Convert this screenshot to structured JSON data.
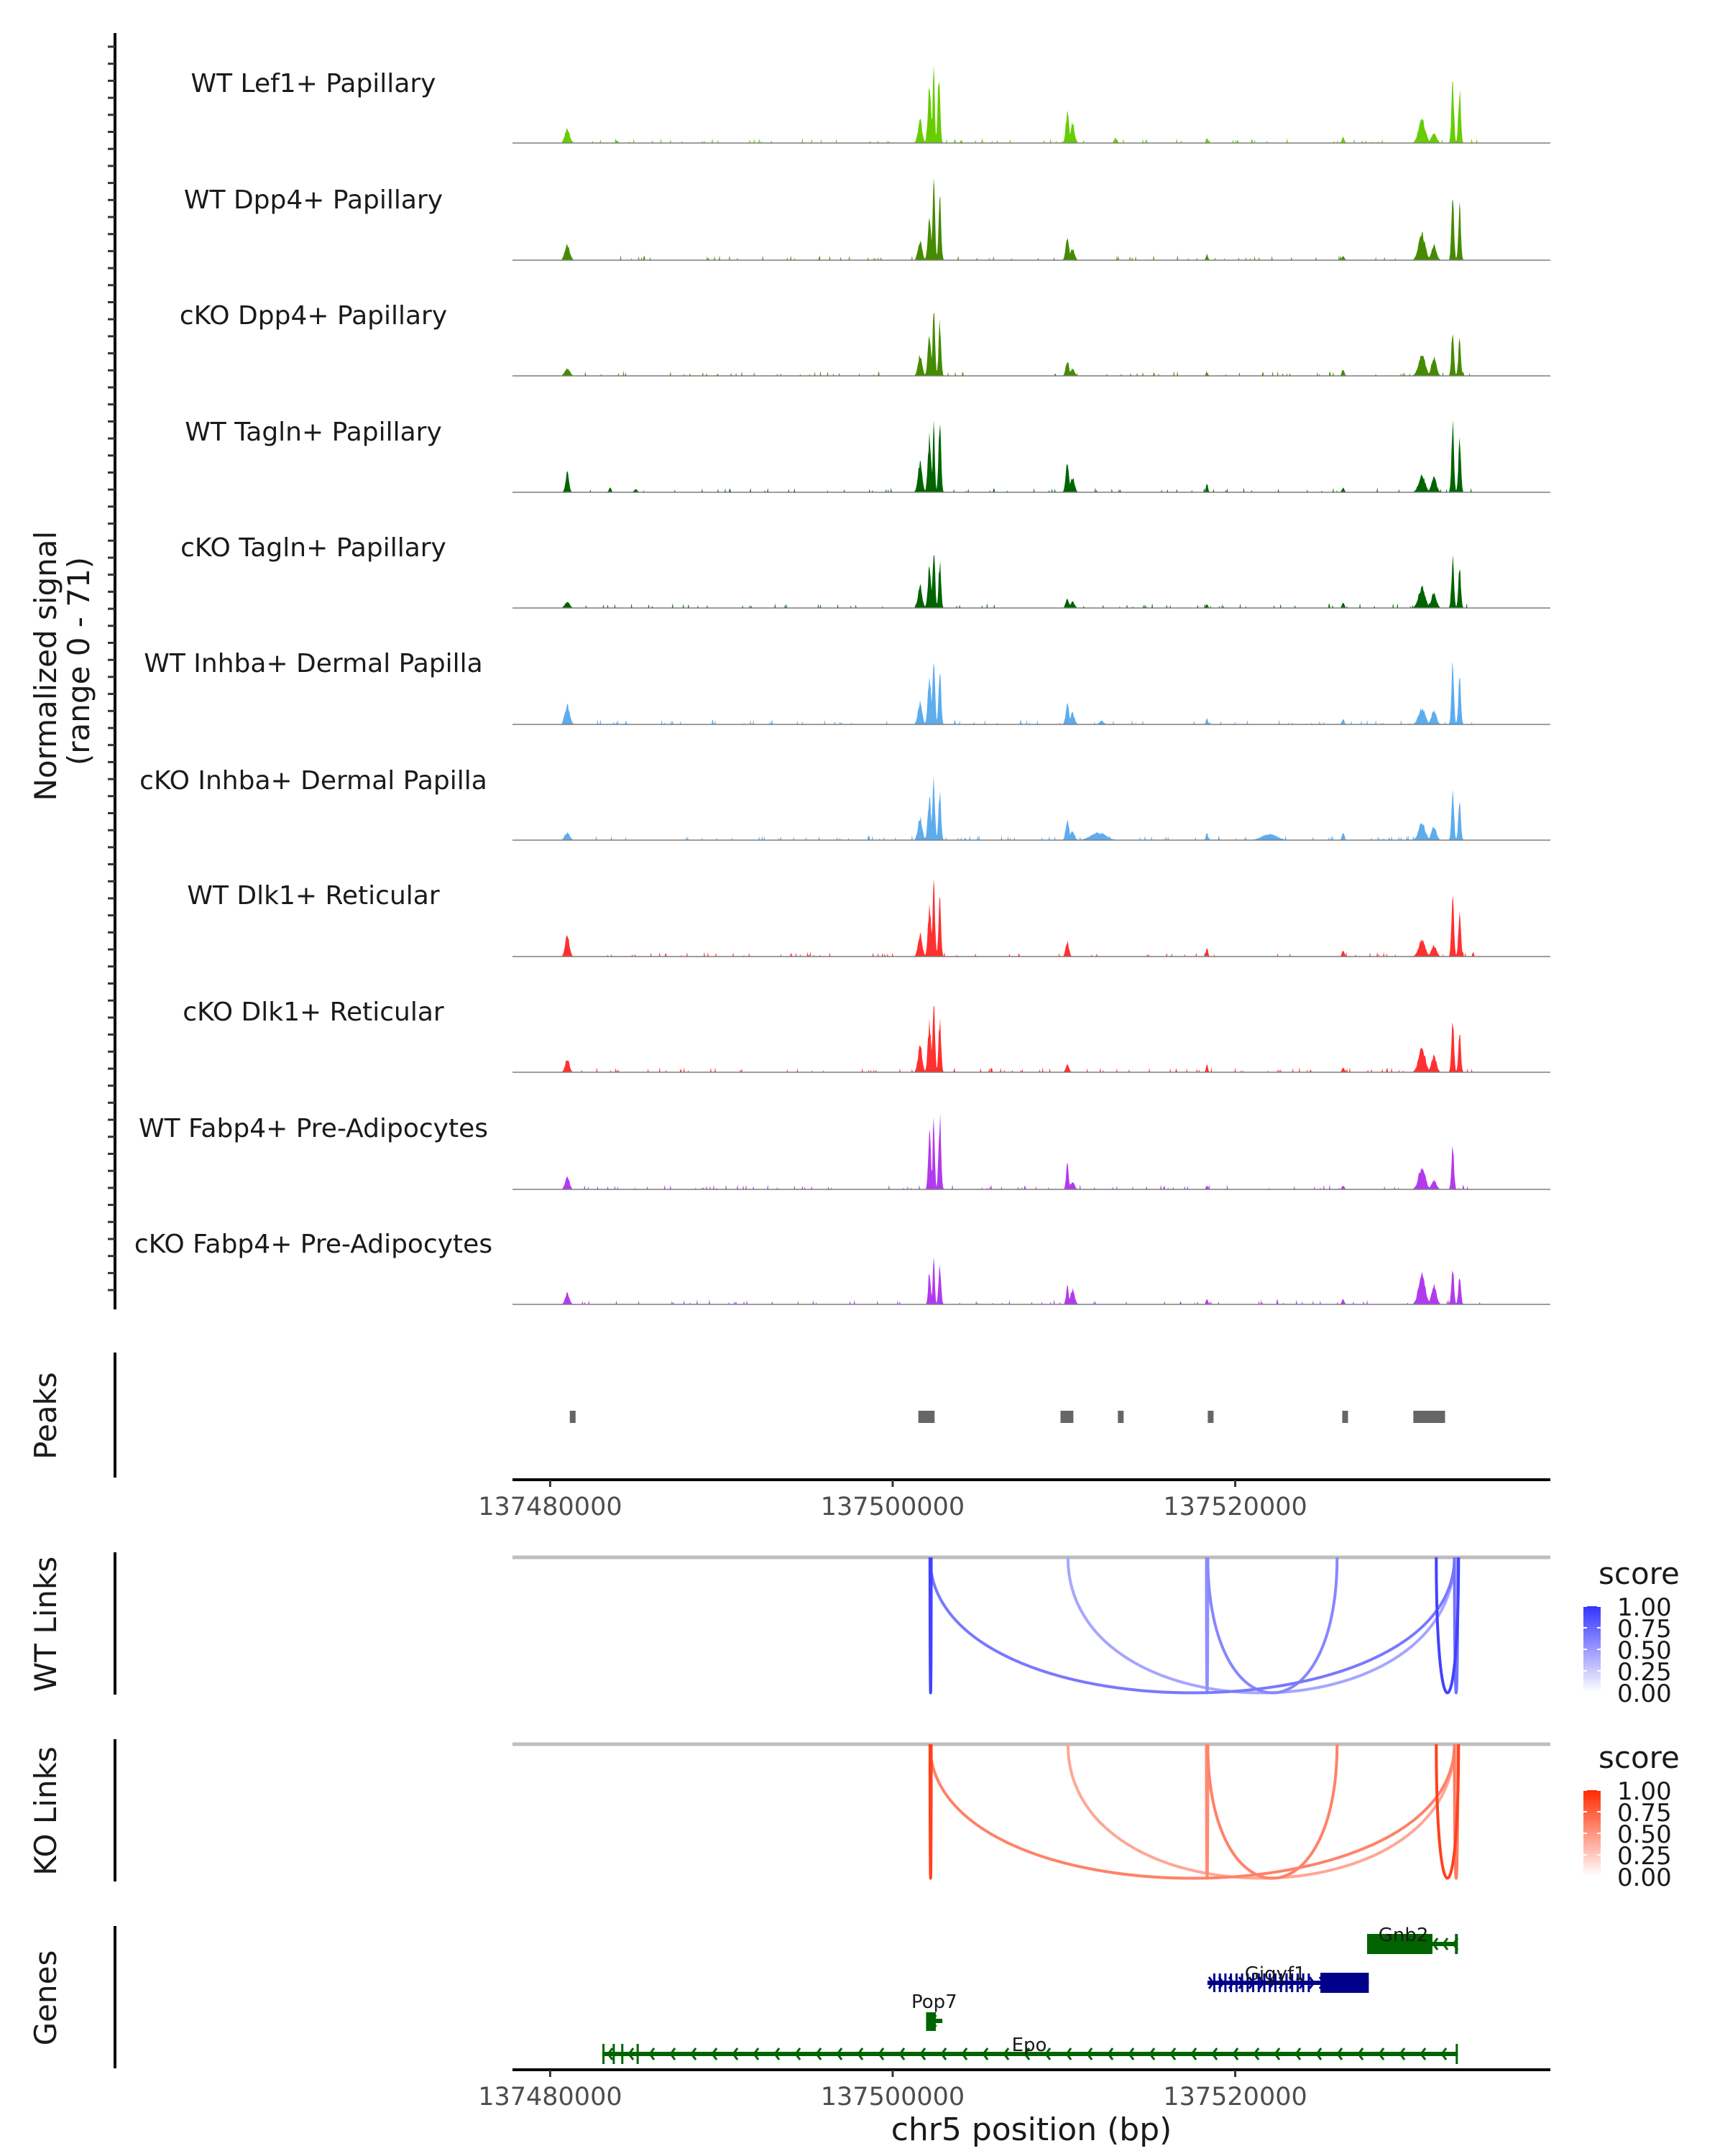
{
  "chart_data": {
    "type": "area",
    "title": "",
    "region": {
      "chrom": "chr5",
      "start": 137477800,
      "end": 137538400
    },
    "xlabel": "chr5 position (bp)",
    "x_ticks": [
      137480000,
      137500000,
      137520000
    ],
    "x_tick_labels": [
      "137480000",
      "137500000",
      "137520000"
    ],
    "coverage_ylabel": "Normalized signal\n(range 0 - 71)",
    "coverage_ylabel_line1": "Normalized signal",
    "coverage_ylabel_line2": "(range 0 - 71)",
    "ylim": [
      0,
      71
    ],
    "grid": false,
    "tracks": [
      {
        "name": "WT Lef1+ Papillary",
        "color": "#66CD00",
        "peaks": [
          [
            137481000,
            0.18,
            300
          ],
          [
            137483900,
            0.03,
            150
          ],
          [
            137501600,
            0.3,
            250
          ],
          [
            137502150,
            0.72,
            200
          ],
          [
            137502400,
            1.0,
            120
          ],
          [
            137502700,
            0.88,
            150
          ],
          [
            137504000,
            0.04,
            100
          ],
          [
            137510200,
            0.4,
            200
          ],
          [
            137510500,
            0.26,
            250
          ],
          [
            137513000,
            0.07,
            150
          ],
          [
            137518350,
            0.07,
            120
          ],
          [
            137526300,
            0.08,
            150
          ],
          [
            137530900,
            0.32,
            400
          ],
          [
            137531600,
            0.14,
            300
          ],
          [
            137532700,
            0.8,
            150
          ],
          [
            137533100,
            0.72,
            150
          ]
        ]
      },
      {
        "name": "WT Dpp4+ Papillary",
        "color": "#458B00",
        "peaks": [
          [
            137481000,
            0.2,
            300
          ],
          [
            137501600,
            0.25,
            250
          ],
          [
            137502150,
            0.6,
            200
          ],
          [
            137502400,
            1.0,
            150
          ],
          [
            137502750,
            0.82,
            150
          ],
          [
            137510200,
            0.3,
            200
          ],
          [
            137510500,
            0.15,
            250
          ],
          [
            137518350,
            0.08,
            120
          ],
          [
            137526300,
            0.06,
            150
          ],
          [
            137530900,
            0.35,
            400
          ],
          [
            137531600,
            0.2,
            300
          ],
          [
            137532700,
            0.9,
            150
          ],
          [
            137533100,
            0.7,
            150
          ]
        ]
      },
      {
        "name": "cKO Dpp4+ Papillary",
        "color": "#458B00",
        "peaks": [
          [
            137481000,
            0.1,
            300
          ],
          [
            137501600,
            0.28,
            250
          ],
          [
            137502150,
            0.55,
            200
          ],
          [
            137502400,
            0.85,
            150
          ],
          [
            137502750,
            0.7,
            150
          ],
          [
            137510200,
            0.2,
            200
          ],
          [
            137510500,
            0.1,
            250
          ],
          [
            137518350,
            0.05,
            120
          ],
          [
            137526300,
            0.08,
            150
          ],
          [
            137530900,
            0.3,
            400
          ],
          [
            137531600,
            0.25,
            300
          ],
          [
            137532700,
            0.65,
            150
          ],
          [
            137533100,
            0.5,
            150
          ]
        ]
      },
      {
        "name": "WT Tagln+ Papillary",
        "color": "#006400",
        "peaks": [
          [
            137481000,
            0.28,
            200
          ],
          [
            137483500,
            0.06,
            150
          ],
          [
            137485000,
            0.04,
            200
          ],
          [
            137501600,
            0.4,
            250
          ],
          [
            137502150,
            0.75,
            200
          ],
          [
            137502400,
            1.0,
            120
          ],
          [
            137502750,
            0.98,
            150
          ],
          [
            137510200,
            0.4,
            200
          ],
          [
            137510500,
            0.2,
            250
          ],
          [
            137518350,
            0.12,
            120
          ],
          [
            137526300,
            0.06,
            150
          ],
          [
            137530900,
            0.22,
            400
          ],
          [
            137531600,
            0.2,
            300
          ],
          [
            137532700,
            0.9,
            150
          ],
          [
            137533100,
            0.72,
            150
          ]
        ]
      },
      {
        "name": "cKO Tagln+ Papillary",
        "color": "#006400",
        "peaks": [
          [
            137481000,
            0.08,
            300
          ],
          [
            137501600,
            0.3,
            250
          ],
          [
            137502150,
            0.55,
            200
          ],
          [
            137502400,
            0.82,
            150
          ],
          [
            137502750,
            0.6,
            150
          ],
          [
            137510200,
            0.12,
            200
          ],
          [
            137510500,
            0.08,
            250
          ],
          [
            137518350,
            0.05,
            120
          ],
          [
            137526300,
            0.07,
            150
          ],
          [
            137530900,
            0.28,
            400
          ],
          [
            137531600,
            0.2,
            300
          ],
          [
            137532700,
            0.65,
            150
          ],
          [
            137533100,
            0.55,
            150
          ]
        ]
      },
      {
        "name": "WT Inhba+ Dermal Papilla",
        "color": "#5CACEE",
        "peaks": [
          [
            137481000,
            0.25,
            300
          ],
          [
            137501600,
            0.3,
            250
          ],
          [
            137502150,
            0.65,
            200
          ],
          [
            137502400,
            0.88,
            150
          ],
          [
            137502750,
            0.75,
            150
          ],
          [
            137510200,
            0.28,
            200
          ],
          [
            137510500,
            0.15,
            250
          ],
          [
            137512200,
            0.05,
            250
          ],
          [
            137518350,
            0.08,
            120
          ],
          [
            137526300,
            0.07,
            150
          ],
          [
            137530900,
            0.22,
            400
          ],
          [
            137531600,
            0.18,
            300
          ],
          [
            137532700,
            0.8,
            150
          ],
          [
            137533100,
            0.6,
            150
          ]
        ]
      },
      {
        "name": "cKO Inhba+ Dermal Papilla",
        "color": "#5CACEE",
        "peaks": [
          [
            137481000,
            0.1,
            300
          ],
          [
            137501600,
            0.3,
            250
          ],
          [
            137502150,
            0.58,
            200
          ],
          [
            137502400,
            0.78,
            150
          ],
          [
            137502750,
            0.65,
            150
          ],
          [
            137510200,
            0.28,
            200
          ],
          [
            137510500,
            0.12,
            250
          ],
          [
            137512000,
            0.1,
            900
          ],
          [
            137518350,
            0.1,
            120
          ],
          [
            137522000,
            0.08,
            900
          ],
          [
            137526300,
            0.1,
            150
          ],
          [
            137530900,
            0.22,
            400
          ],
          [
            137531600,
            0.18,
            300
          ],
          [
            137532700,
            0.68,
            150
          ],
          [
            137533100,
            0.5,
            150
          ]
        ]
      },
      {
        "name": "WT Dlk1+ Reticular",
        "color": "#FF3030",
        "peaks": [
          [
            137481000,
            0.3,
            250
          ],
          [
            137501600,
            0.3,
            250
          ],
          [
            137502150,
            0.65,
            200
          ],
          [
            137502400,
            0.95,
            150
          ],
          [
            137502750,
            0.75,
            150
          ],
          [
            137510200,
            0.2,
            200
          ],
          [
            137518350,
            0.12,
            120
          ],
          [
            137526300,
            0.08,
            150
          ],
          [
            137530900,
            0.22,
            400
          ],
          [
            137531600,
            0.15,
            300
          ],
          [
            137532700,
            0.8,
            150
          ],
          [
            137533100,
            0.6,
            150
          ]
        ]
      },
      {
        "name": "cKO Dlk1+ Reticular",
        "color": "#FF3030",
        "peaks": [
          [
            137481000,
            0.18,
            250
          ],
          [
            137501600,
            0.35,
            250
          ],
          [
            137502150,
            0.65,
            200
          ],
          [
            137502400,
            0.9,
            150
          ],
          [
            137502750,
            0.7,
            150
          ],
          [
            137510200,
            0.1,
            200
          ],
          [
            137518350,
            0.1,
            120
          ],
          [
            137526300,
            0.06,
            150
          ],
          [
            137530900,
            0.32,
            400
          ],
          [
            137531600,
            0.22,
            300
          ],
          [
            137532700,
            0.72,
            150
          ],
          [
            137533100,
            0.55,
            150
          ]
        ]
      },
      {
        "name": "WT Fabp4+ Pre-Adipocytes",
        "color": "#B23AEE",
        "peaks": [
          [
            137481000,
            0.18,
            250
          ],
          [
            137502150,
            0.85,
            150
          ],
          [
            137502400,
            1.0,
            120
          ],
          [
            137502750,
            0.95,
            150
          ],
          [
            137510200,
            0.35,
            150
          ],
          [
            137510500,
            0.1,
            250
          ],
          [
            137518350,
            0.05,
            120
          ],
          [
            137526300,
            0.05,
            150
          ],
          [
            137530900,
            0.3,
            400
          ],
          [
            137531600,
            0.12,
            300
          ],
          [
            137532700,
            0.6,
            150
          ]
        ]
      },
      {
        "name": "cKO Fabp4+ Pre-Adipocytes",
        "color": "#B23AEE",
        "peaks": [
          [
            137481000,
            0.15,
            250
          ],
          [
            137502150,
            0.45,
            150
          ],
          [
            137502400,
            0.65,
            120
          ],
          [
            137502750,
            0.5,
            150
          ],
          [
            137510200,
            0.25,
            150
          ],
          [
            137510500,
            0.2,
            250
          ],
          [
            137518350,
            0.08,
            120
          ],
          [
            137526300,
            0.07,
            150
          ],
          [
            137530900,
            0.4,
            400
          ],
          [
            137531600,
            0.25,
            300
          ],
          [
            137532700,
            0.5,
            150
          ],
          [
            137533100,
            0.4,
            150
          ]
        ]
      }
    ],
    "peaks_track": {
      "label": "Peaks",
      "color": "#666666",
      "ranges": [
        [
          137481150,
          137481450
        ],
        [
          137501500,
          137502450
        ],
        [
          137509800,
          137510550
        ],
        [
          137513150,
          137513350
        ],
        [
          137518400,
          137518650
        ],
        [
          137526250,
          137526550
        ],
        [
          137530400,
          137532250
        ]
      ]
    },
    "links": [
      {
        "label": "WT Links",
        "legend_title": "score",
        "color_low": "#FFFFFF",
        "color_high": "#3333FF",
        "legend_ticks": [
          "1.00",
          "0.75",
          "0.50",
          "0.25",
          "0.00"
        ],
        "items": [
          {
            "start": 137502180,
            "end": 137502250,
            "score": 0.9
          },
          {
            "start": 137502180,
            "end": 137532800,
            "score": 0.55
          },
          {
            "start": 137510230,
            "end": 137532800,
            "score": 0.25
          },
          {
            "start": 137518320,
            "end": 137518400,
            "score": 0.4
          },
          {
            "start": 137518400,
            "end": 137525950,
            "score": 0.45
          },
          {
            "start": 137531740,
            "end": 137533040,
            "score": 0.9
          },
          {
            "start": 137532800,
            "end": 137533000,
            "score": 0.6
          }
        ]
      },
      {
        "label": "KO Links",
        "legend_title": "score",
        "color_low": "#FFFFFF",
        "color_high": "#FF2A00",
        "legend_ticks": [
          "1.00",
          "0.75",
          "0.50",
          "0.25",
          "0.00"
        ],
        "items": [
          {
            "start": 137502180,
            "end": 137502250,
            "score": 0.85
          },
          {
            "start": 137502180,
            "end": 137532800,
            "score": 0.45
          },
          {
            "start": 137510230,
            "end": 137532800,
            "score": 0.22
          },
          {
            "start": 137518320,
            "end": 137518400,
            "score": 0.4
          },
          {
            "start": 137518400,
            "end": 137525950,
            "score": 0.45
          },
          {
            "start": 137531740,
            "end": 137533040,
            "score": 0.85
          },
          {
            "start": 137532800,
            "end": 137533000,
            "score": 0.5
          }
        ]
      }
    ],
    "genes_track": {
      "label": "Genes",
      "genes": [
        {
          "name": "Gnb2",
          "start": 137527700,
          "end": 137533000,
          "strand": "-",
          "color": "#006400",
          "row": 0
        },
        {
          "name": "Gigyf1",
          "start": 137518380,
          "end": 137527800,
          "strand": "+",
          "color": "#00008B",
          "row": 1
        },
        {
          "name": "Pop7",
          "start": 137501950,
          "end": 137502900,
          "strand": "-",
          "color": "#006400",
          "row": 2
        },
        {
          "name": "Epo",
          "start": 137483050,
          "end": 137533000,
          "strand": "-",
          "color": "#006400",
          "row": 3
        }
      ]
    }
  }
}
